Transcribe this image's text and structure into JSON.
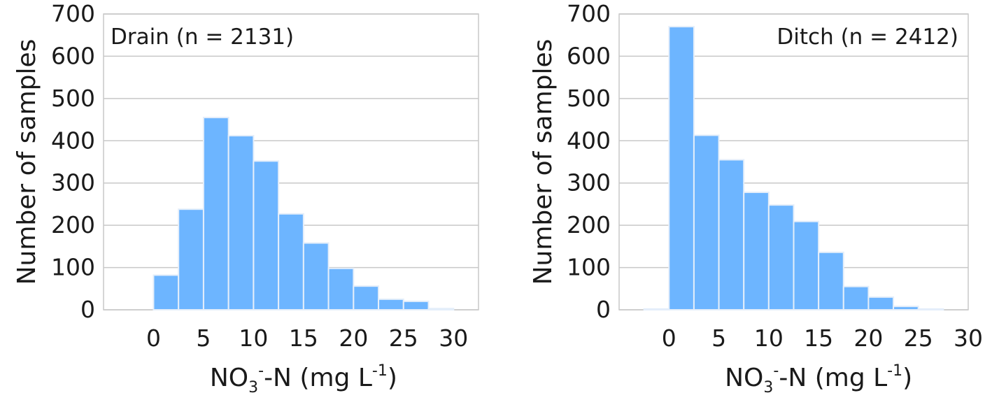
{
  "chart_data": [
    {
      "type": "bar",
      "panel_label": "Drain (n = 2131)",
      "legend_position": "top-left",
      "xlabel": {
        "main": "NO",
        "sub": "3",
        "sup": "-",
        "rest": "-N (mg L",
        "unit_sup": "-1",
        "close": ")"
      },
      "ylabel": "Number of samples",
      "xlim": [
        -5,
        32.5
      ],
      "ylim": [
        0,
        700
      ],
      "xticks": [
        0,
        5,
        10,
        15,
        20,
        25,
        30
      ],
      "yticks": [
        0,
        100,
        200,
        300,
        400,
        500,
        600,
        700
      ],
      "grid": "horizontal",
      "bin_edges": [
        0,
        2.5,
        5,
        7.5,
        10,
        12.5,
        15,
        17.5,
        20,
        22.5,
        25,
        27.5,
        30
      ],
      "values": [
        82,
        238,
        455,
        412,
        352,
        227,
        158,
        98,
        56,
        25,
        20,
        3
      ],
      "color": "#6db5ff"
    },
    {
      "type": "bar",
      "panel_label": "Ditch (n = 2412)",
      "legend_position": "top-right",
      "xlabel": {
        "main": "NO",
        "sub": "3",
        "sup": "-",
        "rest": "-N (mg L",
        "unit_sup": "-1",
        "close": ")"
      },
      "ylabel": "Number of samples",
      "xlim": [
        -5,
        30
      ],
      "ylim": [
        0,
        700
      ],
      "xticks": [
        0,
        5,
        10,
        15,
        20,
        25,
        30
      ],
      "yticks": [
        0,
        100,
        200,
        300,
        400,
        500,
        600,
        700
      ],
      "grid": "horizontal",
      "bin_edges": [
        -2.5,
        0,
        2.5,
        5,
        7.5,
        10,
        12.5,
        15,
        17.5,
        20,
        22.5,
        25,
        27.5
      ],
      "values": [
        2,
        670,
        413,
        355,
        278,
        248,
        209,
        136,
        55,
        30,
        8,
        2
      ],
      "color": "#6db5ff"
    }
  ]
}
